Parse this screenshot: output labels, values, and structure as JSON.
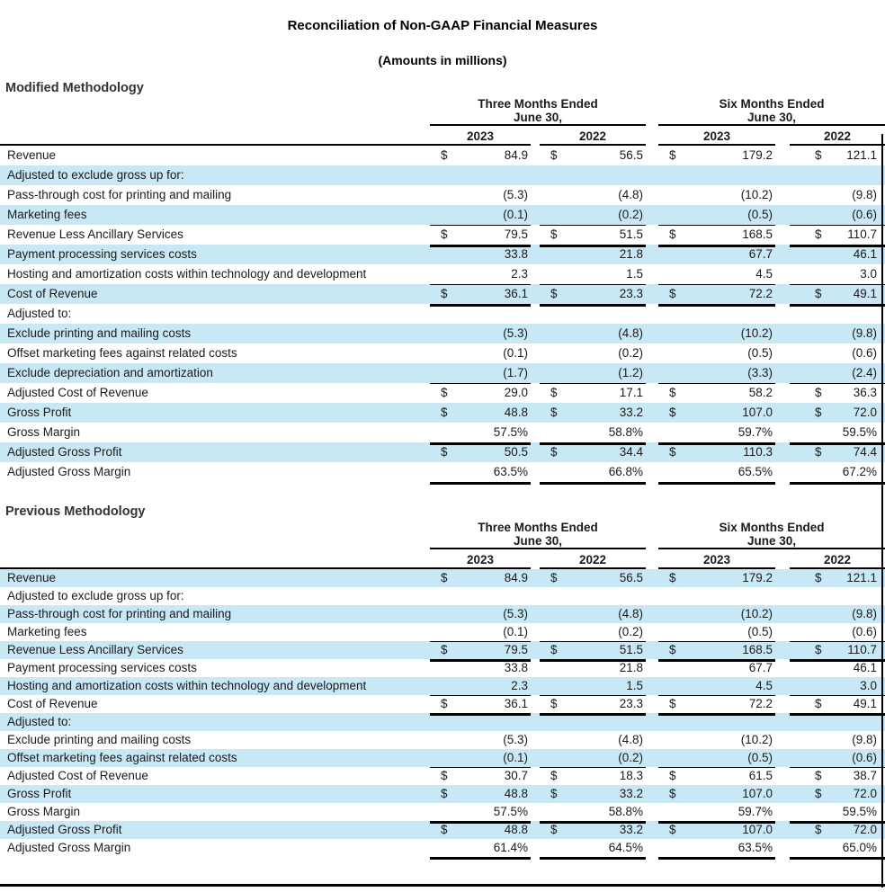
{
  "page": {
    "title": "Reconciliation of Non-GAAP Financial Measures",
    "subtitle": "(Amounts in millions)",
    "currency_symbol": "$",
    "accent_row_color": "#c9e8f6",
    "rule_color": "#000000"
  },
  "columns": {
    "period_groups": [
      {
        "line1": "Three Months Ended",
        "line2": "June 30,"
      },
      {
        "line1": "Six Months Ended",
        "line2": "June 30,"
      }
    ],
    "years": [
      "2023",
      "2022",
      "2023",
      "2022"
    ]
  },
  "tables": [
    {
      "heading": "Modified Methodology",
      "rows": [
        {
          "label": "Revenue",
          "currency": true,
          "values": [
            "84.9",
            "56.5",
            "179.2",
            "121.1"
          ],
          "shaded": false,
          "underline": "none"
        },
        {
          "label": "Adjusted to exclude gross up for:",
          "currency": false,
          "values": [
            "",
            "",
            "",
            ""
          ],
          "shaded": true,
          "underline": "none"
        },
        {
          "label": "Pass-through cost for printing and mailing",
          "currency": false,
          "values": [
            "(5.3)",
            "(4.8)",
            "(10.2)",
            "(9.8)"
          ],
          "shaded": false,
          "underline": "none"
        },
        {
          "label": "Marketing fees",
          "currency": false,
          "values": [
            "(0.1)",
            "(0.2)",
            "(0.5)",
            "(0.6)"
          ],
          "shaded": true,
          "underline": "thin"
        },
        {
          "label": "Revenue Less Ancillary Services",
          "currency": true,
          "values": [
            "79.5",
            "51.5",
            "168.5",
            "110.7"
          ],
          "shaded": false,
          "underline": "thick"
        },
        {
          "label": "Payment processing services costs",
          "currency": false,
          "values": [
            "33.8",
            "21.8",
            "67.7",
            "46.1"
          ],
          "shaded": true,
          "underline": "none"
        },
        {
          "label": "Hosting and amortization costs within technology and development",
          "currency": false,
          "values": [
            "2.3",
            "1.5",
            "4.5",
            "3.0"
          ],
          "shaded": false,
          "underline": "thin"
        },
        {
          "label": "Cost of Revenue",
          "currency": true,
          "values": [
            "36.1",
            "23.3",
            "72.2",
            "49.1"
          ],
          "shaded": true,
          "underline": "thick"
        },
        {
          "label": "Adjusted to:",
          "currency": false,
          "values": [
            "",
            "",
            "",
            ""
          ],
          "shaded": false,
          "underline": "none"
        },
        {
          "label": "Exclude printing and mailing costs",
          "currency": false,
          "values": [
            "(5.3)",
            "(4.8)",
            "(10.2)",
            "(9.8)"
          ],
          "shaded": true,
          "underline": "none"
        },
        {
          "label": "Offset marketing fees against related costs",
          "currency": false,
          "values": [
            "(0.1)",
            "(0.2)",
            "(0.5)",
            "(0.6)"
          ],
          "shaded": false,
          "underline": "none"
        },
        {
          "label": "Exclude depreciation and amortization",
          "currency": false,
          "values": [
            "(1.7)",
            "(1.2)",
            "(3.3)",
            "(2.4)"
          ],
          "shaded": true,
          "underline": "thin"
        },
        {
          "label": "Adjusted Cost of Revenue",
          "currency": true,
          "values": [
            "29.0",
            "17.1",
            "58.2",
            "36.3"
          ],
          "shaded": false,
          "underline": "none"
        },
        {
          "label": "Gross Profit",
          "currency": true,
          "values": [
            "48.8",
            "33.2",
            "107.0",
            "72.0"
          ],
          "shaded": true,
          "underline": "none"
        },
        {
          "label": "Gross Margin",
          "currency": false,
          "values": [
            "57.5%",
            "58.8%",
            "59.7%",
            "59.5%"
          ],
          "shaded": false,
          "underline": "thick"
        },
        {
          "label": "Adjusted Gross Profit",
          "currency": true,
          "values": [
            "50.5",
            "34.4",
            "110.3",
            "74.4"
          ],
          "shaded": true,
          "underline": "none"
        },
        {
          "label": "Adjusted Gross Margin",
          "currency": false,
          "values": [
            "63.5%",
            "66.8%",
            "65.5%",
            "67.2%"
          ],
          "shaded": false,
          "underline": "thick"
        }
      ]
    },
    {
      "heading": "Previous Methodology",
      "rows": [
        {
          "label": "Revenue",
          "currency": true,
          "values": [
            "84.9",
            "56.5",
            "179.2",
            "121.1"
          ],
          "shaded": true,
          "underline": "none"
        },
        {
          "label": "Adjusted to exclude gross up for:",
          "currency": false,
          "values": [
            "",
            "",
            "",
            ""
          ],
          "shaded": false,
          "underline": "none"
        },
        {
          "label": "Pass-through cost for printing and mailing",
          "currency": false,
          "values": [
            "(5.3)",
            "(4.8)",
            "(10.2)",
            "(9.8)"
          ],
          "shaded": true,
          "underline": "none"
        },
        {
          "label": "Marketing fees",
          "currency": false,
          "values": [
            "(0.1)",
            "(0.2)",
            "(0.5)",
            "(0.6)"
          ],
          "shaded": false,
          "underline": "thin"
        },
        {
          "label": "Revenue Less Ancillary Services",
          "currency": true,
          "values": [
            "79.5",
            "51.5",
            "168.5",
            "110.7"
          ],
          "shaded": true,
          "underline": "thick"
        },
        {
          "label": "Payment processing services costs",
          "currency": false,
          "values": [
            "33.8",
            "21.8",
            "67.7",
            "46.1"
          ],
          "shaded": false,
          "underline": "none"
        },
        {
          "label": "Hosting and amortization costs within technology and development",
          "currency": false,
          "values": [
            "2.3",
            "1.5",
            "4.5",
            "3.0"
          ],
          "shaded": true,
          "underline": "thin"
        },
        {
          "label": "Cost of Revenue",
          "currency": true,
          "values": [
            "36.1",
            "23.3",
            "72.2",
            "49.1"
          ],
          "shaded": false,
          "underline": "thick"
        },
        {
          "label": "Adjusted to:",
          "currency": false,
          "values": [
            "",
            "",
            "",
            ""
          ],
          "shaded": true,
          "underline": "none"
        },
        {
          "label": "Exclude printing and mailing costs",
          "currency": false,
          "values": [
            "(5.3)",
            "(4.8)",
            "(10.2)",
            "(9.8)"
          ],
          "shaded": false,
          "underline": "none"
        },
        {
          "label": "Offset marketing fees against related costs",
          "currency": false,
          "values": [
            "(0.1)",
            "(0.2)",
            "(0.5)",
            "(0.6)"
          ],
          "shaded": true,
          "underline": "thin"
        },
        {
          "label": "Adjusted Cost of Revenue",
          "currency": true,
          "values": [
            "30.7",
            "18.3",
            "61.5",
            "38.7"
          ],
          "shaded": false,
          "underline": "none"
        },
        {
          "label": "Gross Profit",
          "currency": true,
          "values": [
            "48.8",
            "33.2",
            "107.0",
            "72.0"
          ],
          "shaded": true,
          "underline": "none"
        },
        {
          "label": "Gross Margin",
          "currency": false,
          "values": [
            "57.5%",
            "58.8%",
            "59.7%",
            "59.5%"
          ],
          "shaded": false,
          "underline": "thick"
        },
        {
          "label": "Adjusted Gross Profit",
          "currency": true,
          "values": [
            "48.8",
            "33.2",
            "107.0",
            "72.0"
          ],
          "shaded": true,
          "underline": "none"
        },
        {
          "label": "Adjusted Gross Margin",
          "currency": false,
          "values": [
            "61.4%",
            "64.5%",
            "63.5%",
            "65.0%"
          ],
          "shaded": false,
          "underline": "thick"
        }
      ]
    }
  ]
}
